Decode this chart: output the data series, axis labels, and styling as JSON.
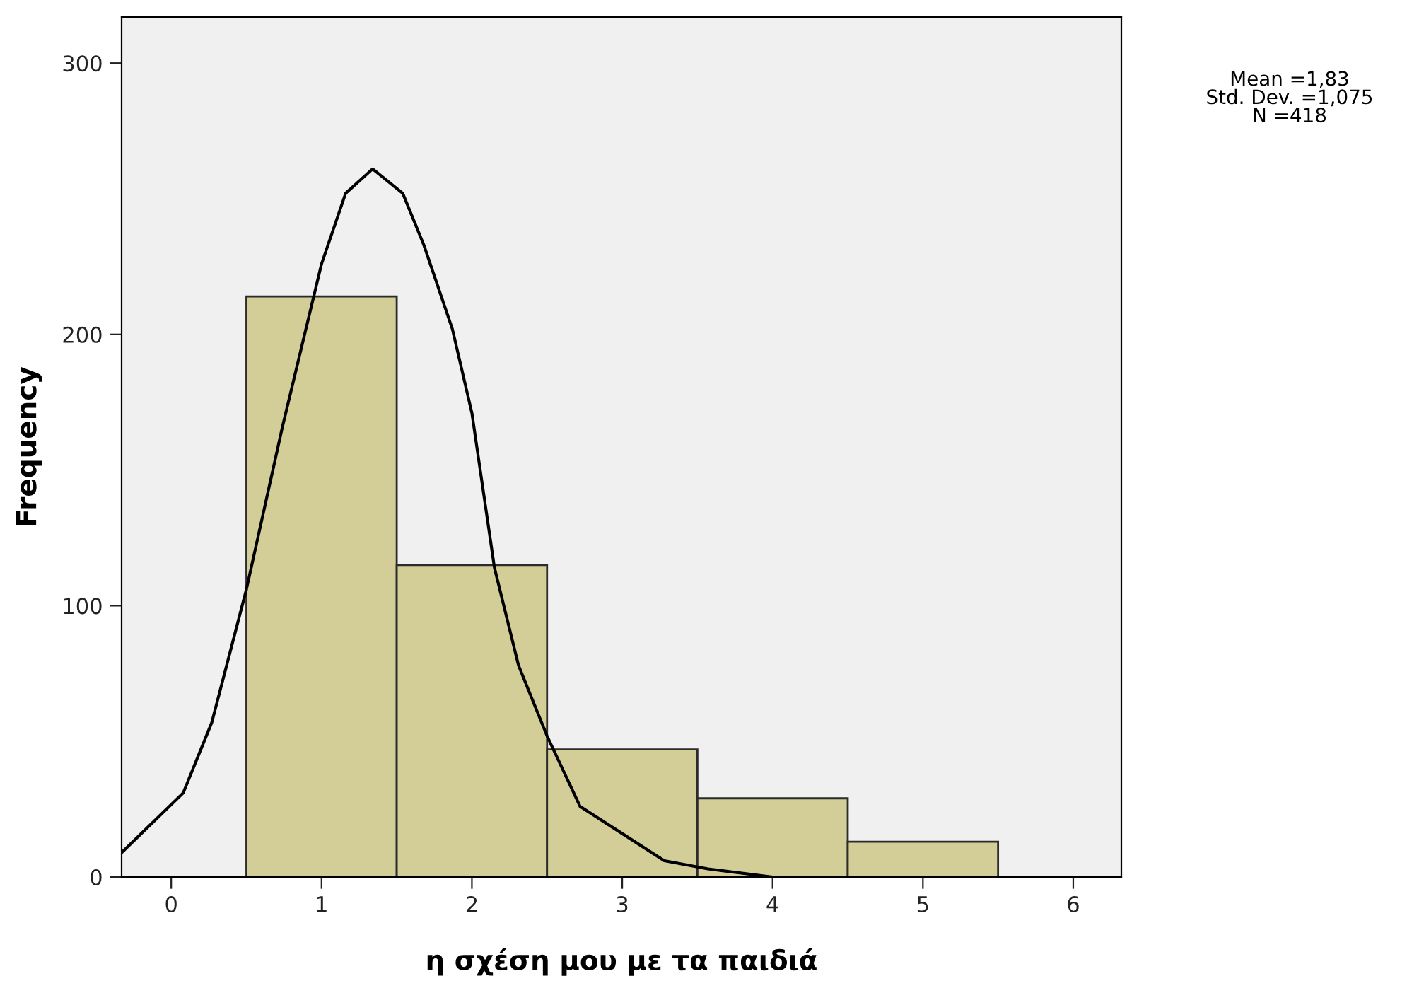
{
  "chart_data": {
    "type": "histogram",
    "xlabel": "η σχέση μου με τα παιδιά",
    "ylabel": "Frequency",
    "bins": [
      0.5,
      1.5,
      2.5,
      3.5,
      4.5,
      5.5
    ],
    "values": [
      214,
      115,
      47,
      29,
      13
    ],
    "color": "#d3ce97",
    "series": [
      {
        "type": "line",
        "color": "#000000",
        "x": [
          -0.33,
          0.08,
          0.27,
          0.5,
          0.74,
          1.0,
          1.16,
          1.34,
          1.54,
          1.68,
          1.87,
          2.0,
          2.15,
          2.31,
          2.5,
          2.72,
          3.0,
          3.28,
          3.57,
          4.0,
          4.5,
          5.0,
          5.5,
          6.0,
          6.32
        ],
        "values": [
          9,
          31,
          57,
          106,
          166,
          226,
          252,
          261,
          252,
          233,
          202,
          171,
          114,
          78,
          52,
          26,
          16,
          6,
          3,
          0,
          0,
          0,
          0,
          0,
          0
        ]
      }
    ],
    "xlim": [
      -0.33,
      6.32
    ],
    "xticks": [
      0,
      1,
      2,
      3,
      4,
      5,
      6
    ],
    "ylim": [
      0,
      317
    ],
    "yticks": [
      0,
      100,
      200,
      300
    ],
    "grid": false,
    "legend": false,
    "annotations": [
      "Mean =1,83\nStd. Dev. =1,075\nN =418"
    ]
  }
}
